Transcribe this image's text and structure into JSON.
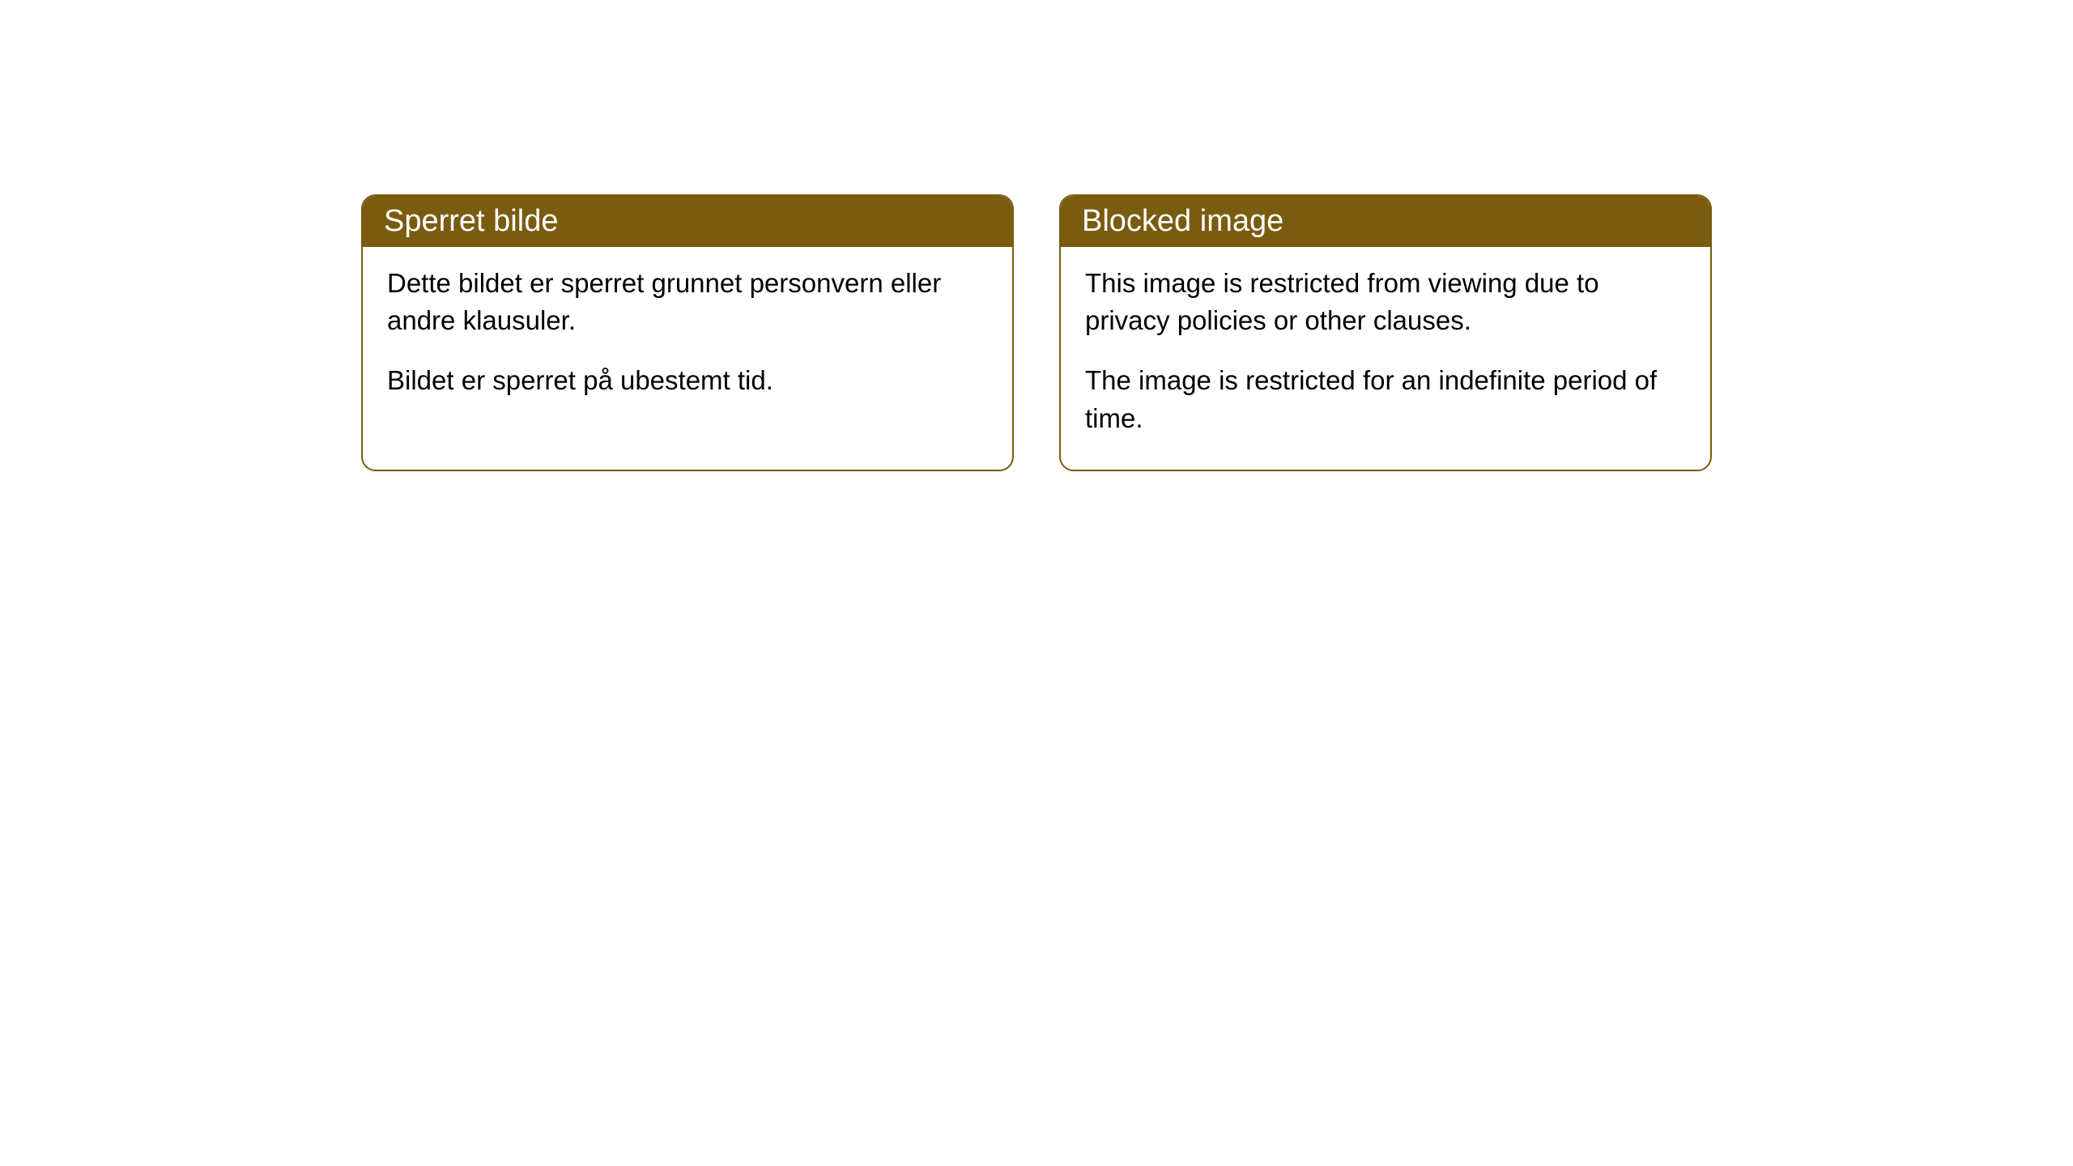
{
  "cards": [
    {
      "title": "Sperret bilde",
      "paragraph1": "Dette bildet er sperret grunnet personvern eller andre klausuler.",
      "paragraph2": "Bildet er sperret på ubestemt tid."
    },
    {
      "title": "Blocked image",
      "paragraph1": "This image is restricted from viewing due to privacy policies or other clauses.",
      "paragraph2": "The image is restricted for an indefinite period of time."
    }
  ],
  "styling": {
    "header_bg_color": "#7a5c10",
    "header_text_color": "#ffffff",
    "border_color": "#7a5c10",
    "body_bg_color": "#ffffff",
    "body_text_color": "#000000",
    "border_radius": 18,
    "header_fontsize": 38,
    "body_fontsize": 33
  }
}
